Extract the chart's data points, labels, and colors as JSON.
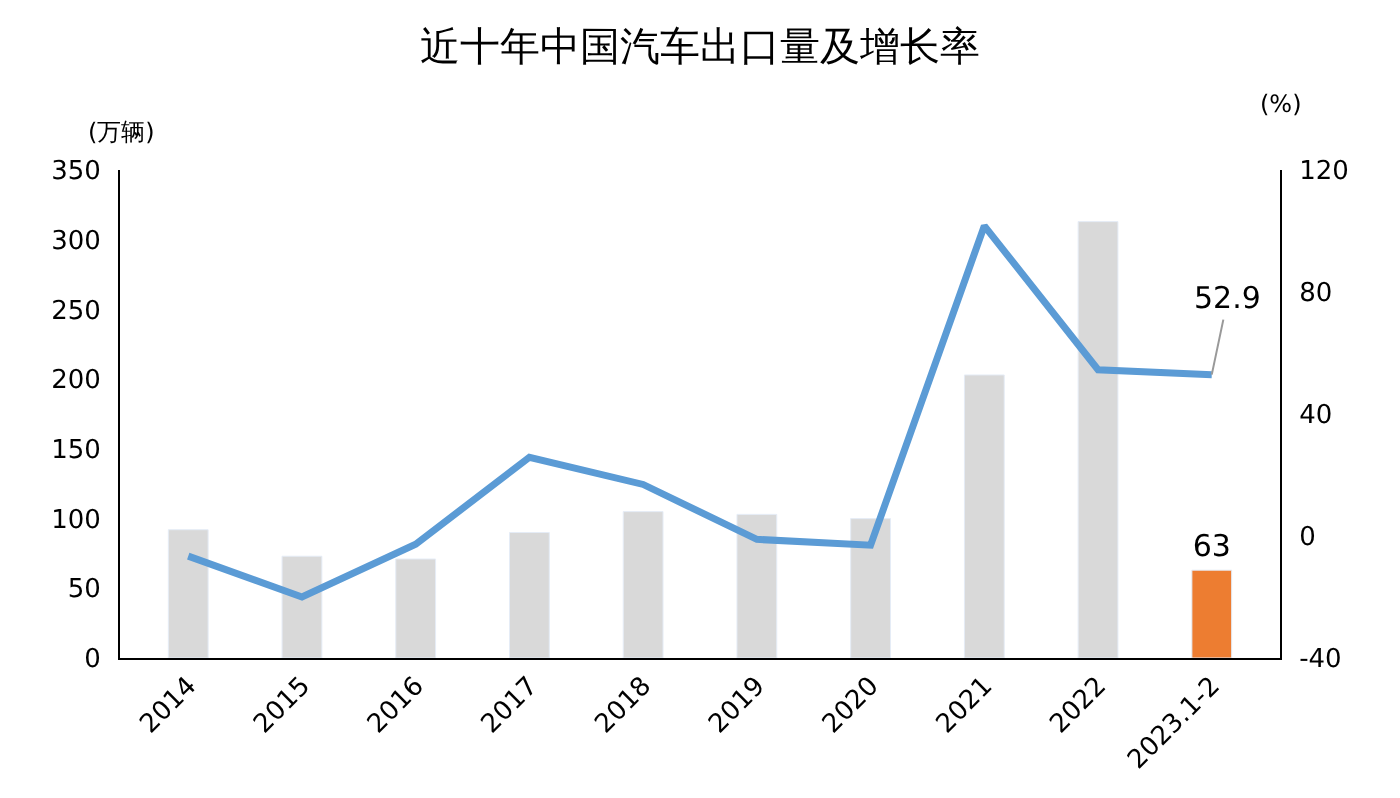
{
  "chart_data": {
    "type": "bar",
    "title": "近十年中国汽车出口量及增长率",
    "ylabel": "(万辆)",
    "y2label": "(%)",
    "categories": [
      "2014",
      "2015",
      "2016",
      "2017",
      "2018",
      "2019",
      "2020",
      "2021",
      "2022",
      "2023.1-2"
    ],
    "series": [
      {
        "colors": [
          "#d9d9d9",
          "#d9d9d9",
          "#d9d9d9",
          "#d9d9d9",
          "#d9d9d9",
          "#d9d9d9",
          "#d9d9d9",
          "#d9d9d9",
          "#d9d9d9",
          "#ed7d31"
        ],
        "values": [
          92,
          73,
          71,
          90,
          105,
          103,
          100,
          203,
          313,
          63
        ],
        "value_labels": [
          null,
          null,
          null,
          null,
          null,
          null,
          null,
          null,
          null,
          "63"
        ]
      },
      {
        "type": "line",
        "axis": "y2",
        "color": "#5b9bd5",
        "marker": "none",
        "values": [
          -6.6,
          -20,
          -2.7,
          25.8,
          16.9,
          -1.1,
          -3,
          101.7,
          54.5,
          52.9
        ],
        "value_labels": [
          null,
          null,
          null,
          null,
          null,
          null,
          null,
          null,
          null,
          "52.9"
        ]
      }
    ],
    "ylim": [
      0,
      350
    ],
    "yticks": [
      0,
      50,
      100,
      150,
      200,
      250,
      300,
      350
    ],
    "y2lim": [
      -40,
      120
    ],
    "y2ticks": [
      -40,
      0,
      40,
      80,
      120
    ]
  }
}
